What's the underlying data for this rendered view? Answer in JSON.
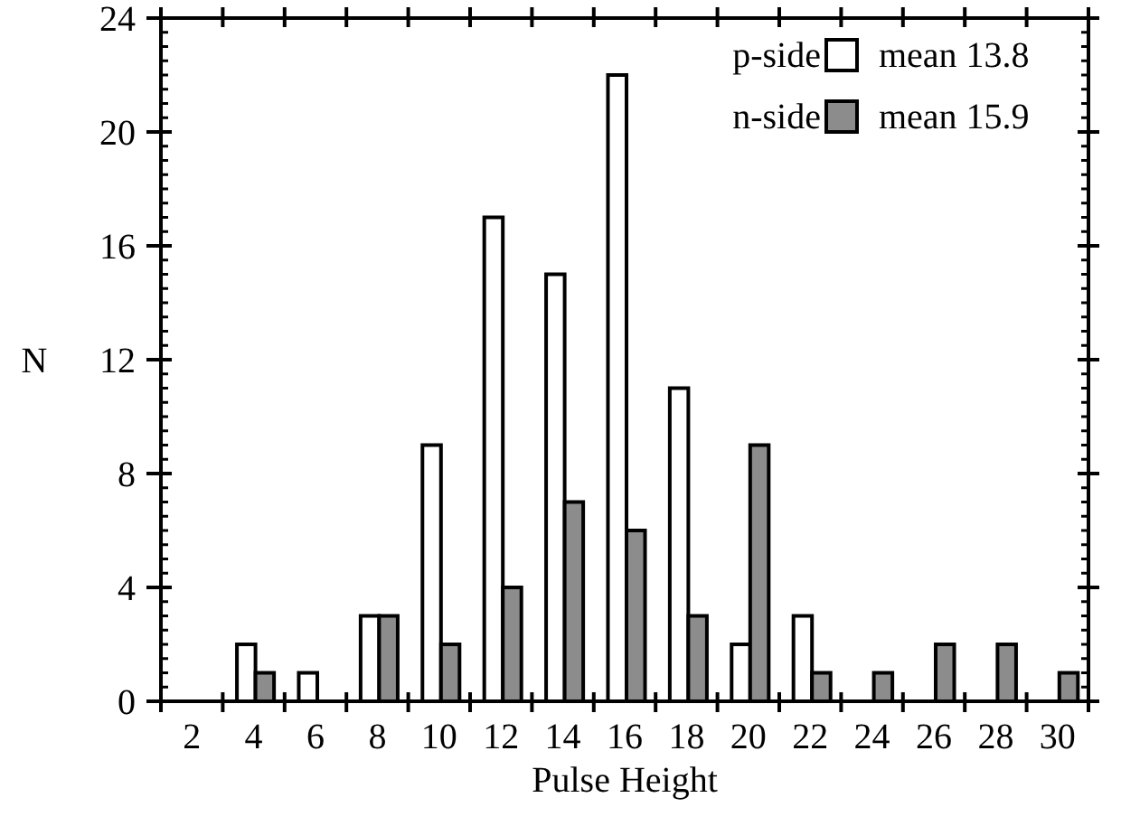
{
  "chart_data": {
    "type": "bar",
    "xlabel": "Pulse Height",
    "ylabel": "N",
    "categories": [
      "2",
      "4",
      "6",
      "8",
      "10",
      "12",
      "14",
      "16",
      "18",
      "20",
      "22",
      "24",
      "26",
      "28",
      "30"
    ],
    "series": [
      {
        "name": "p-side",
        "color": "#ffffff",
        "values": [
          0,
          2,
          1,
          3,
          9,
          17,
          15,
          22,
          11,
          2,
          3,
          0,
          0,
          0,
          0
        ]
      },
      {
        "name": "n-side",
        "color": "#8c8c8c",
        "values": [
          0,
          1,
          0,
          3,
          2,
          4,
          7,
          6,
          3,
          9,
          1,
          1,
          2,
          2,
          1
        ]
      }
    ],
    "annotations": [
      "mean  13.8",
      "mean  15.9"
    ],
    "ylim": [
      0,
      24
    ],
    "yticks": [
      0,
      4,
      8,
      12,
      16,
      20,
      24
    ],
    "grid": false,
    "legend": "top right"
  }
}
